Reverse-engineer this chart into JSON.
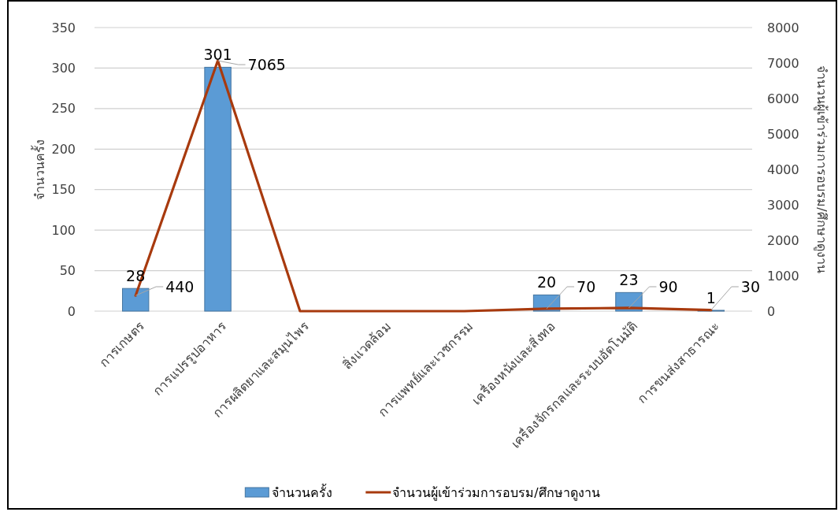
{
  "chart_data": {
    "type": "bar",
    "ylabel": "จำนวนครั้ง",
    "y2label": "จำนวนผู้เข้าร่วมการอบรม/ศึกษาดูงาน",
    "categories": [
      "การเกษตร",
      "การแปรรูปอาหาร",
      "การผลิตยาและสมุนไพร",
      "สิ่งแวดล้อม",
      "การแพทย์และเวชกรรม",
      "เครื่องหนังและสิ่งทอ",
      "เครื่องจักรกลและระบบอัตโนมัติ",
      "การขนส่งสาธารณะ"
    ],
    "series": [
      {
        "name": "จำนวนครั้ง",
        "color": "#5b9bd5",
        "values": [
          28,
          301,
          0,
          0,
          0,
          20,
          23,
          1
        ],
        "value_labels": [
          "28",
          "301",
          null,
          null,
          null,
          "20",
          "23",
          "1"
        ]
      },
      {
        "name": "จำนวนผู้เข้าร่วมการอบรม/ศึกษาดูงาน",
        "type": "line",
        "axis": "y2",
        "color": "#a83a0e",
        "values": [
          440,
          7065,
          0,
          0,
          0,
          70,
          90,
          30
        ],
        "value_labels": [
          "440",
          "7065",
          null,
          null,
          null,
          "70",
          "90",
          "30"
        ]
      }
    ],
    "ylim": [
      0,
      350
    ],
    "yticks": [
      0,
      50,
      100,
      150,
      200,
      250,
      300,
      350
    ],
    "y2lim": [
      0,
      8000
    ],
    "y2ticks": [
      0,
      1000,
      2000,
      3000,
      4000,
      5000,
      6000,
      7000,
      8000
    ],
    "grid": "y",
    "legend": "bottom"
  }
}
